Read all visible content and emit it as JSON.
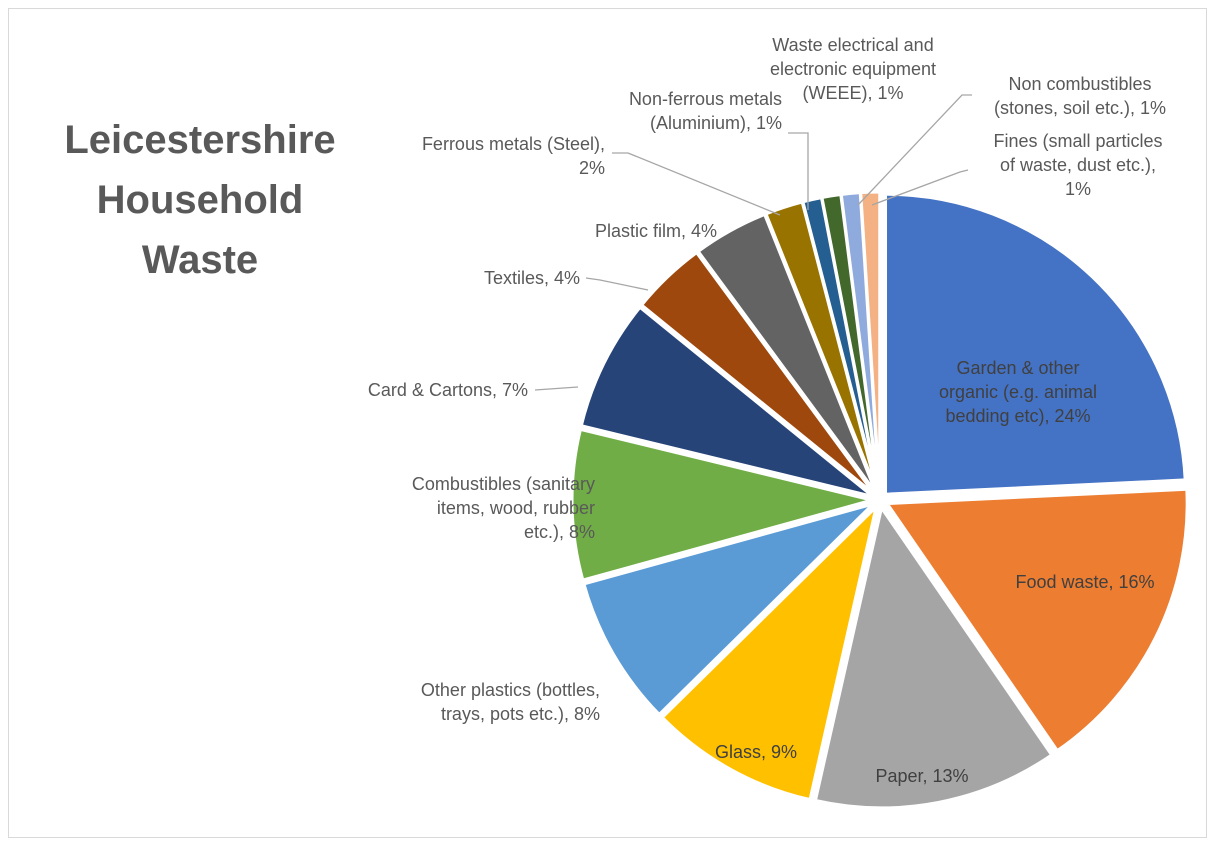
{
  "chart_data": {
    "type": "pie",
    "title_lines": [
      "Leicestershire",
      "Household",
      "Waste"
    ],
    "slices": [
      {
        "name": "Garden & other organic (e.g. animal bedding etc)",
        "value": 24,
        "label_lines": [
          "Garden & other",
          "organic (e.g. animal",
          "bedding etc), 24%"
        ],
        "color": "#4472C4"
      },
      {
        "name": "Food waste",
        "value": 16,
        "label_lines": [
          "Food waste, 16%"
        ],
        "color": "#ED7D31"
      },
      {
        "name": "Paper",
        "value": 13,
        "label_lines": [
          "Paper, 13%"
        ],
        "color": "#A5A5A5"
      },
      {
        "name": "Glass",
        "value": 9,
        "label_lines": [
          "Glass, 9%"
        ],
        "color": "#FFC000"
      },
      {
        "name": "Other plastics (bottles, trays, pots etc.)",
        "value": 8,
        "label_lines": [
          "Other plastics (bottles,",
          "trays, pots etc.), 8%"
        ],
        "color": "#5B9BD5"
      },
      {
        "name": "Combustibles (sanitary items, wood, rubber etc.)",
        "value": 8,
        "label_lines": [
          "Combustibles (sanitary",
          "items, wood, rubber",
          "etc.), 8%"
        ],
        "color": "#70AD47"
      },
      {
        "name": "Card & Cartons",
        "value": 7,
        "label_lines": [
          "Card & Cartons, 7%"
        ],
        "color": "#264478"
      },
      {
        "name": "Textiles",
        "value": 4,
        "label_lines": [
          "Textiles, 4%"
        ],
        "color": "#9E480E"
      },
      {
        "name": "Plastic film",
        "value": 4,
        "label_lines": [
          "Plastic film, 4%"
        ],
        "color": "#636363"
      },
      {
        "name": "Ferrous metals (Steel)",
        "value": 2,
        "label_lines": [
          "Ferrous metals (Steel),",
          "2%"
        ],
        "color": "#997300"
      },
      {
        "name": "Non-ferrous metals (Aluminium)",
        "value": 1,
        "label_lines": [
          "Non-ferrous metals",
          "(Aluminium), 1%"
        ],
        "color": "#255E91"
      },
      {
        "name": "Waste electrical and electronic equipment (WEEE)",
        "value": 1,
        "label_lines": [
          "Waste electrical and",
          "electronic equipment",
          "(WEEE), 1%"
        ],
        "color": "#43682B"
      },
      {
        "name": "Non combustibles (stones, soil etc.)",
        "value": 1,
        "label_lines": [
          "Non combustibles",
          "(stones, soil etc.), 1%"
        ],
        "color": "#8FAADC"
      },
      {
        "name": "Fines (small particles of waste, dust etc.)",
        "value": 1,
        "label_lines": [
          "Fines (small particles",
          "of waste, dust etc.),",
          "1%"
        ],
        "color": "#F4B183"
      }
    ],
    "legend": "none"
  }
}
